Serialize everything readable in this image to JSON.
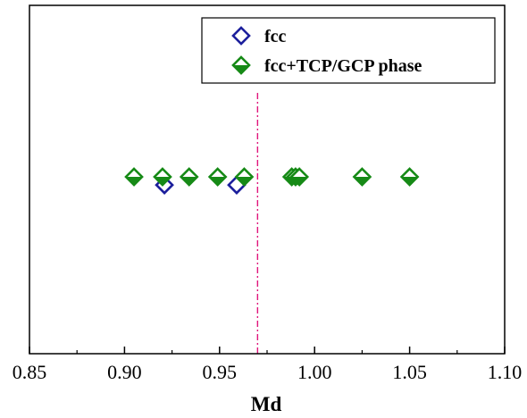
{
  "chart_data": {
    "type": "scatter",
    "title": "",
    "xlabel": "Md",
    "ylabel": "",
    "xlim": [
      0.85,
      1.1
    ],
    "x_ticks": [
      "0.85",
      "0.90",
      "0.95",
      "1.00",
      "1.05",
      "1.10"
    ],
    "grid": false,
    "legend_position": "top-right",
    "reference_line": {
      "x": 0.97,
      "color": "#e0157b",
      "style": "dash-dot"
    },
    "series": [
      {
        "name": "fcc",
        "marker": "open-diamond",
        "color": "#1c1f9c",
        "points": [
          {
            "x": 0.921,
            "y": -0.07
          },
          {
            "x": 0.959,
            "y": -0.07
          }
        ]
      },
      {
        "name": "fcc+TCP/GCP phase",
        "marker": "half-filled-diamond",
        "color": "#168a16",
        "points": [
          {
            "x": 0.905,
            "y": 0
          },
          {
            "x": 0.92,
            "y": 0
          },
          {
            "x": 0.934,
            "y": 0
          },
          {
            "x": 0.949,
            "y": 0
          },
          {
            "x": 0.963,
            "y": 0
          },
          {
            "x": 0.988,
            "y": 0
          },
          {
            "x": 0.99,
            "y": 0
          },
          {
            "x": 0.992,
            "y": 0
          },
          {
            "x": 1.025,
            "y": 0
          },
          {
            "x": 1.05,
            "y": 0
          }
        ]
      }
    ]
  }
}
